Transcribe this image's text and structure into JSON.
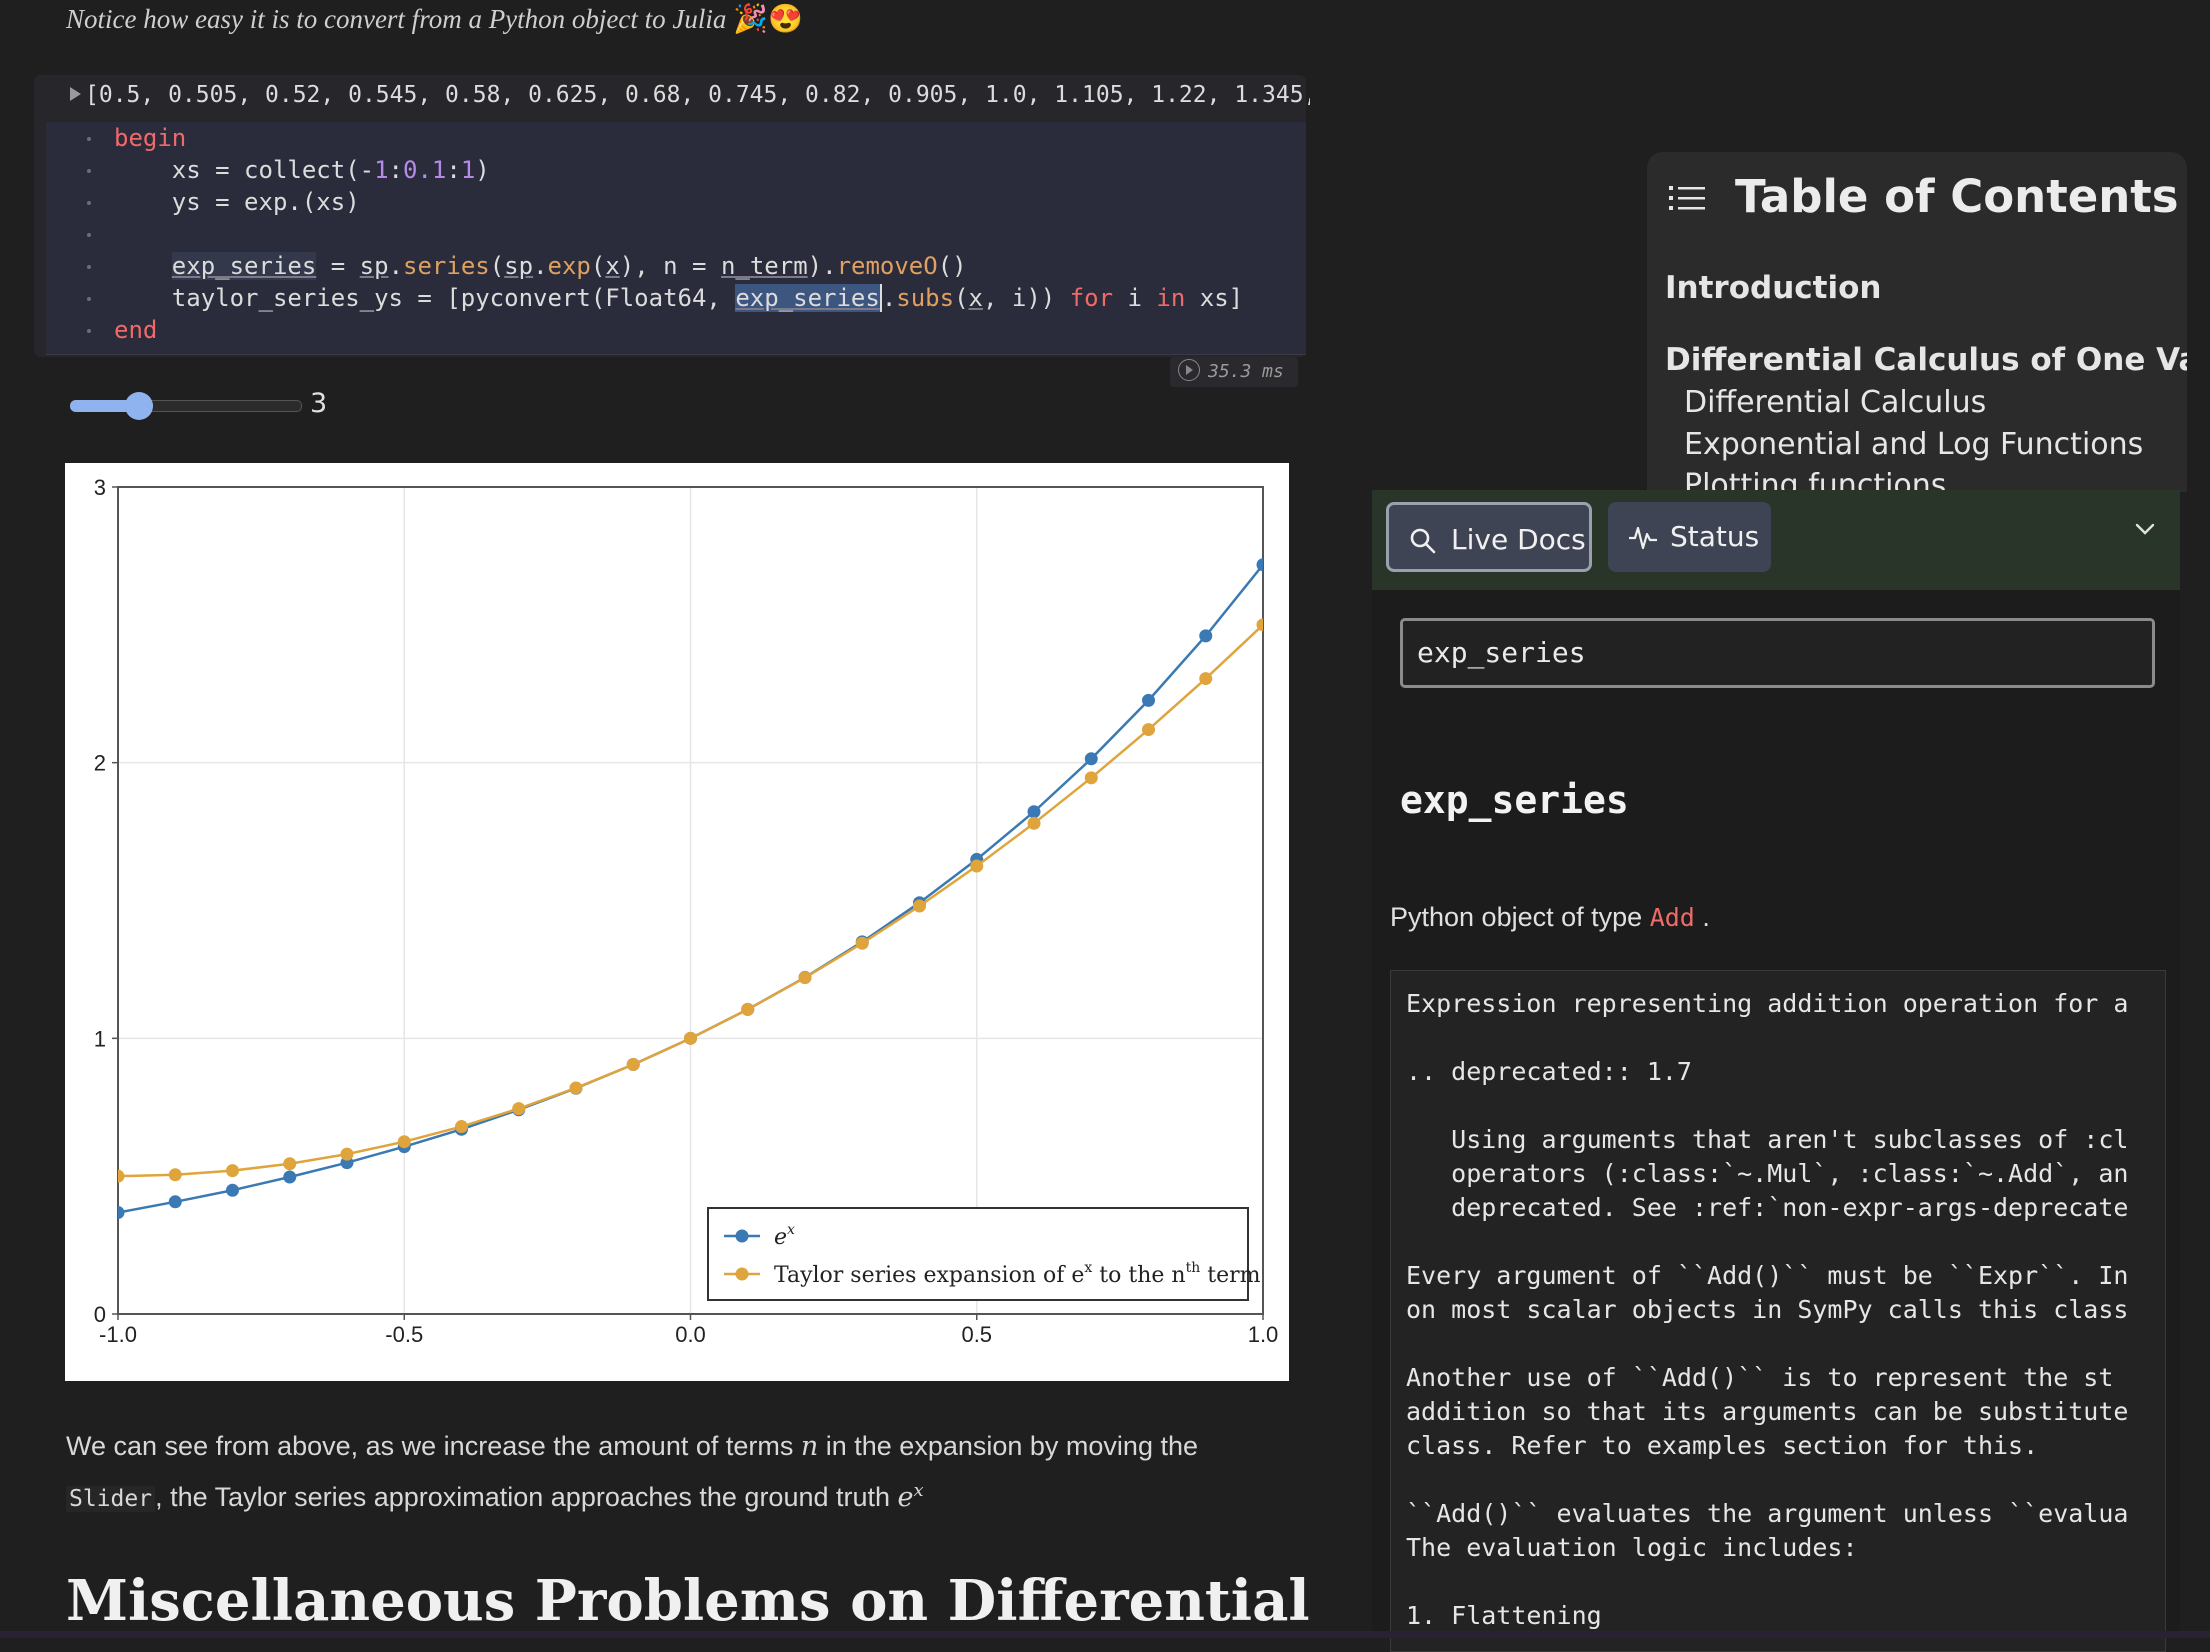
{
  "notice": {
    "text": "Notice how easy it is to convert from a Python object to Julia",
    "emoji": "🎉😍"
  },
  "output_line": "[0.5, 0.505, 0.52, 0.545, 0.58, 0.625, 0.68, 0.745, 0.82, 0.905, 1.0, 1.105, 1.22, 1.345, 1",
  "code": {
    "l1": "begin",
    "l2a": "    xs = collect(-",
    "l2b": "1",
    "l2c": ":",
    "l2d": "0.1",
    "l2e": ":",
    "l2f": "1",
    "l2g": ")",
    "l3": "    ys = exp.(xs)",
    "l4a": "    ",
    "l4b": "exp_series",
    "l4c": " = ",
    "l4d": "sp",
    "l4e": ".",
    "l4f": "series",
    "l4g": "(",
    "l4h": "sp",
    "l4i": ".",
    "l4j": "exp",
    "l4k": "(",
    "l4l": "x",
    "l4m": "), n = ",
    "l4n": "n_term",
    "l4o": ").",
    "l4p": "removeO",
    "l4q": "()",
    "l5a": "    taylor_series_ys = [pyconvert(Float64, ",
    "l5b": "exp_series",
    "l5c": ".",
    "l5d": "subs",
    "l5e": "(",
    "l5f": "x",
    "l5g": ", i)) ",
    "l5h": "for",
    "l5i": " i ",
    "l5j": "in",
    "l5k": " xs]",
    "l6": "end"
  },
  "runtime": "35.3 ms",
  "slider": {
    "value": 3,
    "min": 1,
    "max": 6,
    "fraction": 0.5
  },
  "chart_data": {
    "type": "line",
    "x": [
      -1.0,
      -0.9,
      -0.8,
      -0.7,
      -0.6,
      -0.5,
      -0.4,
      -0.3,
      -0.2,
      -0.1,
      0.0,
      0.1,
      0.2,
      0.3,
      0.4,
      0.5,
      0.6,
      0.7,
      0.8,
      0.9,
      1.0
    ],
    "series": [
      {
        "name": "e^x",
        "color": "#3a79b4",
        "values": [
          0.368,
          0.407,
          0.449,
          0.497,
          0.549,
          0.607,
          0.67,
          0.741,
          0.819,
          0.905,
          1.0,
          1.105,
          1.221,
          1.35,
          1.492,
          1.649,
          1.822,
          2.014,
          2.226,
          2.46,
          2.718
        ]
      },
      {
        "name": "Taylor series expansion of e^x to the n^th term",
        "color": "#e0a43c",
        "values": [
          0.5,
          0.505,
          0.52,
          0.545,
          0.58,
          0.625,
          0.68,
          0.745,
          0.82,
          0.905,
          1.0,
          1.105,
          1.22,
          1.345,
          1.48,
          1.625,
          1.78,
          1.945,
          2.12,
          2.305,
          2.5
        ]
      }
    ],
    "xticks": [
      "-1.0",
      "-0.5",
      "0.0",
      "0.5",
      "1.0"
    ],
    "yticks": [
      "0",
      "1",
      "2",
      "3"
    ],
    "xlim": [
      -1.0,
      1.0
    ],
    "ylim": [
      0,
      3
    ],
    "legend_placement": "bottom-right",
    "grid": true,
    "title": "",
    "xlabel": "",
    "ylabel": ""
  },
  "para": {
    "p1": "We can see from above, as we increase the amount of terms ",
    "n": "n",
    "p2": " in the expansion by moving the",
    "code": "Slider",
    "p3": ", the Taylor series approximation approaches the ground truth ",
    "e": "e",
    "x": "x"
  },
  "heading": "Miscellaneous Problems on Differential",
  "toc": {
    "title": "Table of Contents",
    "items": [
      "Introduction",
      "Differential Calculus of One Vari...",
      "Differential Calculus",
      "Exponential and Log Functions",
      "Plotting functions"
    ]
  },
  "docs": {
    "tab_live": "Live Docs",
    "tab_status": "Status",
    "query": "exp_series",
    "title": "exp_series",
    "type_prefix": "Python object of type",
    "type_name": "Add",
    "type_suffix": ".",
    "body": "Expression representing addition operation for a\n\n.. deprecated:: 1.7\n\n   Using arguments that aren't subclasses of :cl\n   operators (:class:`~.Mul`, :class:`~.Add`, an\n   deprecated. See :ref:`non-expr-args-deprecate\n\nEvery argument of ``Add()`` must be ``Expr``. In\non most scalar objects in SymPy calls this class\n\nAnother use of ``Add()`` is to represent the st\naddition so that its arguments can be substitute\nclass. Refer to examples section for this.\n\n``Add()`` evaluates the argument unless ``evalua\nThe evaluation logic includes:\n\n1. Flattening"
  }
}
